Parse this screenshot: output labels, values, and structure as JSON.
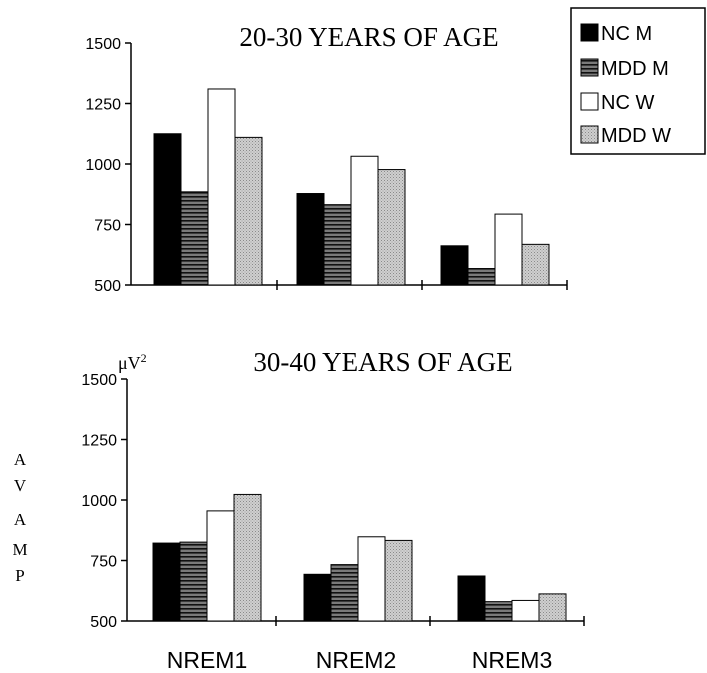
{
  "unit": {
    "base": "μV",
    "exp": "2"
  },
  "ylabel_letters": [
    "A",
    "V",
    "A",
    "M",
    "P"
  ],
  "legend": [
    "NC M",
    "MDD M",
    "NC W",
    "MDD W"
  ],
  "colors": {
    "nc_m": "#000000",
    "mdd_m": "#555555",
    "nc_w": "#ffffff",
    "mdd_w": "#bdbdbd"
  },
  "chart_data": [
    {
      "type": "bar",
      "title": "20-30 YEARS OF AGE",
      "categories": [
        "NREM1",
        "NREM2",
        "NREM3"
      ],
      "series": [
        {
          "name": "NC M",
          "values": [
            1125,
            878,
            662
          ]
        },
        {
          "name": "MDD M",
          "values": [
            885,
            832,
            568
          ]
        },
        {
          "name": "NC W",
          "values": [
            1310,
            1032,
            793
          ]
        },
        {
          "name": "MDD W",
          "values": [
            1110,
            977,
            668
          ]
        }
      ],
      "ylim": [
        500,
        1500
      ],
      "yticks": [
        "500",
        "750",
        "1000",
        "1250",
        "1500"
      ],
      "grid": false,
      "legend_position": "top-right"
    },
    {
      "type": "bar",
      "title": "30-40 YEARS OF AGE",
      "categories": [
        "NREM1",
        "NREM2",
        "NREM3"
      ],
      "series": [
        {
          "name": "NC M",
          "values": [
            822,
            693,
            686
          ]
        },
        {
          "name": "MDD M",
          "values": [
            826,
            733,
            580
          ]
        },
        {
          "name": "NC W",
          "values": [
            955,
            848,
            585
          ]
        },
        {
          "name": "MDD W",
          "values": [
            1023,
            833,
            612
          ]
        }
      ],
      "ylim": [
        500,
        1500
      ],
      "yticks": [
        "500",
        "750",
        "1000",
        "1250",
        "1500"
      ],
      "grid": false
    }
  ]
}
